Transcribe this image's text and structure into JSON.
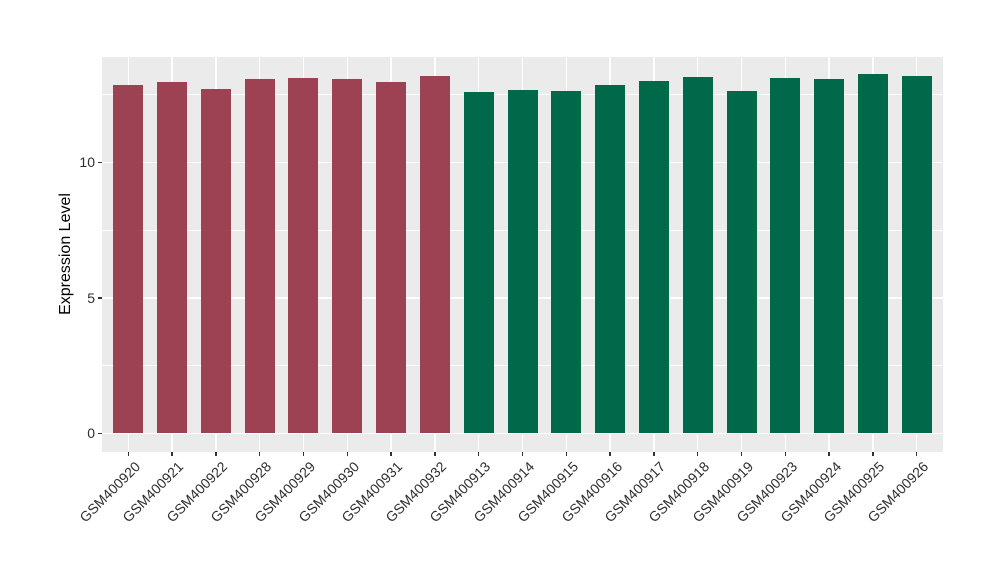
{
  "chart_data": {
    "type": "bar",
    "title": "",
    "xlabel": "",
    "ylabel": "Expression Level",
    "ylim": [
      -0.7,
      13.88
    ],
    "yticks": [
      0,
      5,
      10
    ],
    "yticks_minor": [
      2.5,
      7.5,
      12.5
    ],
    "grid": true,
    "legend_position": "none",
    "categories": [
      "GSM400920",
      "GSM400921",
      "GSM400922",
      "GSM400928",
      "GSM400929",
      "GSM400930",
      "GSM400931",
      "GSM400932",
      "GSM400913",
      "GSM400914",
      "GSM400915",
      "GSM400916",
      "GSM400917",
      "GSM400918",
      "GSM400919",
      "GSM400923",
      "GSM400924",
      "GSM400925",
      "GSM400926"
    ],
    "values": [
      12.85,
      12.95,
      12.72,
      13.06,
      13.11,
      13.06,
      12.95,
      13.17,
      12.6,
      12.67,
      12.64,
      12.85,
      13.0,
      13.15,
      12.64,
      13.11,
      13.08,
      13.25,
      13.17
    ],
    "groups": [
      "group1",
      "group1",
      "group1",
      "group1",
      "group1",
      "group1",
      "group1",
      "group1",
      "group2",
      "group2",
      "group2",
      "group2",
      "group2",
      "group2",
      "group2",
      "group2",
      "group2",
      "group2",
      "group2"
    ],
    "group_colors": {
      "group1": "#9C4252",
      "group2": "#00694A"
    },
    "colors": {
      "panel_background": "#EBEBEB",
      "gridline": "#FFFFFF",
      "tick_mark": "#333333",
      "tick_label": "#2E2E2E",
      "axis_title": "#000000",
      "figure_background": "#FFFFFF"
    }
  }
}
